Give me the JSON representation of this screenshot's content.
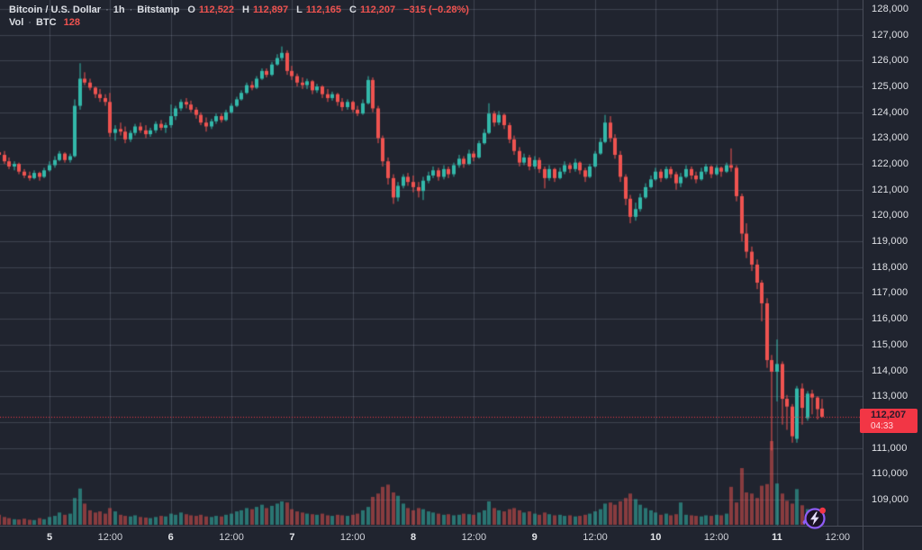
{
  "colors": {
    "background": "#20242f",
    "grid": "rgba(168,178,200,0.22)",
    "up": "#33b8aa",
    "down": "#ef5350",
    "volume_up": "rgba(51,184,170,0.55)",
    "volume_down": "rgba(239,83,80,0.50)",
    "last_price": "#f23645",
    "axis_text": "#dfe1e6",
    "purple": "#8e5df6"
  },
  "legend": {
    "symbol": "Bitcoin / U.S. Dollar",
    "separator": "·",
    "interval": "1h",
    "exchange": "Bitstamp",
    "open_label": "O",
    "open_value": "112,522",
    "high_label": "H",
    "high_value": "112,897",
    "low_label": "L",
    "low_value": "112,165",
    "close_label": "C",
    "close_value": "112,207",
    "change": "−315 (−0.28%)",
    "volume_label": "Vol",
    "volume_unit": "BTC",
    "volume_value": "128"
  },
  "price_axis": {
    "ticks": [
      128000,
      127000,
      126000,
      125000,
      124000,
      123000,
      122000,
      121000,
      120000,
      119000,
      118000,
      117000,
      116000,
      115000,
      114000,
      113000,
      112000,
      111000,
      110000,
      109000
    ],
    "hidden_tick": 112000,
    "last": {
      "price": "112,207",
      "countdown": "04:33",
      "value": 112207
    }
  },
  "time_axis": {
    "ticks": [
      {
        "label": "5",
        "i": 10,
        "major": true
      },
      {
        "label": "12:00",
        "i": 22,
        "major": false
      },
      {
        "label": "6",
        "i": 34,
        "major": true
      },
      {
        "label": "12:00",
        "i": 46,
        "major": false
      },
      {
        "label": "7",
        "i": 58,
        "major": true
      },
      {
        "label": "12:00",
        "i": 70,
        "major": false
      },
      {
        "label": "8",
        "i": 82,
        "major": true
      },
      {
        "label": "12:00",
        "i": 94,
        "major": false
      },
      {
        "label": "9",
        "i": 106,
        "major": true
      },
      {
        "label": "12:00",
        "i": 118,
        "major": false
      },
      {
        "label": "10",
        "i": 130,
        "major": true
      },
      {
        "label": "12:00",
        "i": 142,
        "major": false
      },
      {
        "label": "11",
        "i": 154,
        "major": true
      },
      {
        "label": "12:00",
        "i": 166,
        "major": false
      }
    ]
  },
  "chart_data": {
    "type": "candlestick",
    "title": "Bitcoin / U.S. Dollar · 1h · Bitstamp",
    "interval": "1h",
    "price_range_visible": [
      109000,
      128000
    ],
    "last_close": 112207,
    "last_volume_btc": 128,
    "ohlc": [
      [
        122450,
        122700,
        122250,
        122350
      ],
      [
        122350,
        122500,
        122000,
        122100
      ],
      [
        122100,
        122250,
        121800,
        121900
      ],
      [
        121900,
        122100,
        121750,
        122000
      ],
      [
        122000,
        122050,
        121600,
        121700
      ],
      [
        121700,
        121800,
        121450,
        121550
      ],
      [
        121550,
        121700,
        121350,
        121450
      ],
      [
        121450,
        121750,
        121400,
        121650
      ],
      [
        121650,
        121700,
        121350,
        121500
      ],
      [
        121500,
        121850,
        121450,
        121750
      ],
      [
        121750,
        122100,
        121700,
        121950
      ],
      [
        121950,
        122300,
        121850,
        122150
      ],
      [
        122150,
        122500,
        122100,
        122400
      ],
      [
        122400,
        122450,
        122050,
        122150
      ],
      [
        122150,
        122400,
        122050,
        122300
      ],
      [
        122300,
        124500,
        122250,
        124250
      ],
      [
        124250,
        125900,
        124100,
        125300
      ],
      [
        125300,
        125550,
        125050,
        125150
      ],
      [
        125150,
        125300,
        124850,
        124950
      ],
      [
        124950,
        125000,
        124550,
        124700
      ],
      [
        124700,
        124900,
        124400,
        124550
      ],
      [
        124550,
        124700,
        124250,
        124400
      ],
      [
        124400,
        124750,
        123050,
        123200
      ],
      [
        123200,
        123500,
        122900,
        123350
      ],
      [
        123350,
        123600,
        123100,
        123250
      ],
      [
        123250,
        123450,
        122800,
        122950
      ],
      [
        122950,
        123300,
        122850,
        123200
      ],
      [
        123200,
        123550,
        123100,
        123450
      ],
      [
        123450,
        123600,
        123200,
        123300
      ],
      [
        123300,
        123500,
        123000,
        123150
      ],
      [
        123150,
        123400,
        123050,
        123300
      ],
      [
        123300,
        123650,
        123200,
        123550
      ],
      [
        123550,
        123700,
        123300,
        123400
      ],
      [
        123400,
        123600,
        123200,
        123500
      ],
      [
        123500,
        124300,
        123400,
        123850
      ],
      [
        123850,
        124250,
        123700,
        124150
      ],
      [
        124150,
        124500,
        124050,
        124400
      ],
      [
        124400,
        124550,
        124150,
        124300
      ],
      [
        124300,
        124450,
        124000,
        124100
      ],
      [
        124100,
        124200,
        123750,
        123900
      ],
      [
        123900,
        124000,
        123500,
        123600
      ],
      [
        123600,
        123800,
        123250,
        123450
      ],
      [
        123450,
        123750,
        123350,
        123650
      ],
      [
        123650,
        123950,
        123550,
        123850
      ],
      [
        123850,
        123950,
        123600,
        123700
      ],
      [
        123700,
        124100,
        123650,
        124000
      ],
      [
        124000,
        124350,
        123950,
        124250
      ],
      [
        124250,
        124600,
        124200,
        124500
      ],
      [
        124500,
        124850,
        124450,
        124750
      ],
      [
        124750,
        125150,
        124700,
        125050
      ],
      [
        125050,
        125200,
        124850,
        124950
      ],
      [
        124950,
        125400,
        124900,
        125300
      ],
      [
        125300,
        125700,
        125250,
        125600
      ],
      [
        125600,
        125700,
        125350,
        125450
      ],
      [
        125450,
        125950,
        125400,
        125850
      ],
      [
        125850,
        126250,
        125800,
        126100
      ],
      [
        126100,
        126550,
        126000,
        126300
      ],
      [
        126300,
        126400,
        125450,
        125600
      ],
      [
        125600,
        125800,
        125250,
        125400
      ],
      [
        125400,
        125500,
        125000,
        125150
      ],
      [
        125150,
        125350,
        124900,
        125050
      ],
      [
        125050,
        125300,
        124900,
        125200
      ],
      [
        125200,
        125250,
        124700,
        124850
      ],
      [
        124850,
        125100,
        124750,
        125000
      ],
      [
        125000,
        125050,
        124550,
        124700
      ],
      [
        124700,
        124900,
        124400,
        124550
      ],
      [
        124550,
        124800,
        124450,
        124700
      ],
      [
        124700,
        124750,
        124250,
        124400
      ],
      [
        124400,
        124550,
        124050,
        124200
      ],
      [
        124200,
        124500,
        124100,
        124400
      ],
      [
        124400,
        124450,
        124000,
        124100
      ],
      [
        124100,
        124250,
        123850,
        123950
      ],
      [
        123950,
        124500,
        123900,
        124350
      ],
      [
        124350,
        125400,
        124300,
        125250
      ],
      [
        125250,
        125350,
        124000,
        124150
      ],
      [
        124150,
        124250,
        122800,
        123000
      ],
      [
        123000,
        123100,
        121900,
        122100
      ],
      [
        122100,
        122250,
        121200,
        121450
      ],
      [
        121450,
        121600,
        120450,
        120700
      ],
      [
        120700,
        121300,
        120550,
        121150
      ],
      [
        121150,
        121600,
        121050,
        121500
      ],
      [
        121500,
        121650,
        121150,
        121300
      ],
      [
        121300,
        121550,
        120900,
        121100
      ],
      [
        121100,
        121300,
        120700,
        120950
      ],
      [
        120950,
        121500,
        120600,
        121350
      ],
      [
        121350,
        121700,
        121250,
        121550
      ],
      [
        121550,
        121900,
        121450,
        121750
      ],
      [
        121750,
        121850,
        121350,
        121500
      ],
      [
        121500,
        121950,
        121400,
        121800
      ],
      [
        121800,
        121900,
        121450,
        121600
      ],
      [
        121600,
        122050,
        121500,
        121950
      ],
      [
        121950,
        122350,
        121850,
        122200
      ],
      [
        122200,
        122300,
        121850,
        122000
      ],
      [
        122000,
        122550,
        121950,
        122400
      ],
      [
        122400,
        122500,
        122100,
        122250
      ],
      [
        122250,
        122900,
        122200,
        122800
      ],
      [
        122800,
        123350,
        122750,
        123200
      ],
      [
        123200,
        124350,
        123150,
        123950
      ],
      [
        123950,
        124050,
        123450,
        123600
      ],
      [
        123600,
        124050,
        123500,
        123900
      ],
      [
        123900,
        123950,
        123350,
        123500
      ],
      [
        123500,
        123600,
        122800,
        122950
      ],
      [
        122950,
        123100,
        122350,
        122500
      ],
      [
        122500,
        122650,
        121900,
        122050
      ],
      [
        122050,
        122400,
        121950,
        122250
      ],
      [
        122250,
        122350,
        121750,
        121900
      ],
      [
        121900,
        122300,
        121800,
        122150
      ],
      [
        122150,
        122250,
        121650,
        121800
      ],
      [
        121800,
        121900,
        121050,
        121450
      ],
      [
        121450,
        121950,
        121350,
        121800
      ],
      [
        121800,
        121850,
        121300,
        121450
      ],
      [
        121450,
        121850,
        121400,
        121700
      ],
      [
        121700,
        122100,
        121600,
        121950
      ],
      [
        121950,
        122050,
        121650,
        121800
      ],
      [
        121800,
        122200,
        121700,
        122050
      ],
      [
        122050,
        122100,
        121600,
        121750
      ],
      [
        121750,
        121850,
        121300,
        121500
      ],
      [
        121500,
        122000,
        121450,
        121900
      ],
      [
        121900,
        122500,
        121850,
        122400
      ],
      [
        122400,
        123000,
        122350,
        122850
      ],
      [
        122850,
        123900,
        122800,
        123600
      ],
      [
        123600,
        123850,
        122850,
        123000
      ],
      [
        123000,
        123150,
        122200,
        122350
      ],
      [
        122350,
        122500,
        121300,
        121500
      ],
      [
        121500,
        121600,
        120400,
        120650
      ],
      [
        120650,
        120800,
        119700,
        119950
      ],
      [
        119950,
        120500,
        119800,
        120250
      ],
      [
        120250,
        120850,
        120150,
        120700
      ],
      [
        120700,
        121250,
        120650,
        121100
      ],
      [
        121100,
        121550,
        121050,
        121400
      ],
      [
        121400,
        121850,
        121350,
        121700
      ],
      [
        121700,
        121800,
        121300,
        121450
      ],
      [
        121450,
        121900,
        121400,
        121800
      ],
      [
        121800,
        121900,
        121450,
        121600
      ],
      [
        121600,
        121700,
        121000,
        121250
      ],
      [
        121250,
        121650,
        121100,
        121500
      ],
      [
        121500,
        121950,
        121450,
        121800
      ],
      [
        121800,
        121900,
        121400,
        121550
      ],
      [
        121550,
        121700,
        121250,
        121400
      ],
      [
        121400,
        121850,
        121350,
        121700
      ],
      [
        121700,
        122000,
        121600,
        121900
      ],
      [
        121900,
        121950,
        121450,
        121600
      ],
      [
        121600,
        121950,
        121550,
        121850
      ],
      [
        121850,
        121900,
        121500,
        121700
      ],
      [
        121700,
        122050,
        121650,
        121950
      ],
      [
        121950,
        122600,
        121700,
        121850
      ],
      [
        121850,
        121950,
        120550,
        120750
      ],
      [
        120750,
        120850,
        119000,
        119300
      ],
      [
        119300,
        119700,
        118350,
        118600
      ],
      [
        118600,
        118800,
        117850,
        118100
      ],
      [
        118100,
        118300,
        117150,
        117400
      ],
      [
        117400,
        117500,
        115900,
        116600
      ],
      [
        116600,
        116800,
        114100,
        114400
      ],
      [
        114400,
        114600,
        110900,
        113950
      ],
      [
        113950,
        115200,
        112800,
        114250
      ],
      [
        114250,
        114350,
        111900,
        112900
      ],
      [
        112900,
        113050,
        111700,
        112600
      ],
      [
        112600,
        112700,
        111200,
        111450
      ],
      [
        111350,
        113400,
        111200,
        113300
      ],
      [
        113300,
        113500,
        111900,
        112550
      ],
      [
        112150,
        113200,
        112050,
        113100
      ],
      [
        113100,
        113250,
        112300,
        112950
      ],
      [
        112950,
        113000,
        112100,
        112500
      ],
      [
        112522,
        112897,
        112165,
        112207
      ]
    ],
    "volume": [
      180,
      140,
      120,
      100,
      95,
      110,
      90,
      85,
      120,
      100,
      140,
      160,
      220,
      180,
      200,
      480,
      650,
      380,
      260,
      220,
      240,
      200,
      300,
      240,
      180,
      160,
      150,
      170,
      140,
      130,
      120,
      140,
      160,
      150,
      200,
      180,
      220,
      190,
      170,
      160,
      180,
      150,
      140,
      160,
      150,
      180,
      200,
      240,
      260,
      300,
      280,
      320,
      360,
      300,
      340,
      380,
      420,
      400,
      280,
      240,
      220,
      200,
      190,
      180,
      200,
      170,
      160,
      180,
      170,
      160,
      180,
      200,
      260,
      320,
      500,
      560,
      680,
      720,
      580,
      520,
      380,
      300,
      260,
      300,
      280,
      240,
      220,
      200,
      180,
      190,
      170,
      180,
      200,
      190,
      180,
      220,
      260,
      420,
      300,
      260,
      240,
      280,
      300,
      260,
      220,
      240,
      200,
      180,
      220,
      190,
      170,
      180,
      160,
      170,
      150,
      160,
      180,
      200,
      240,
      280,
      380,
      400,
      360,
      420,
      480,
      560,
      460,
      360,
      300,
      260,
      220,
      180,
      200,
      170,
      190,
      400,
      180,
      170,
      160,
      150,
      170,
      160,
      180,
      170,
      200,
      680,
      400,
      1016,
      580,
      560,
      480,
      700,
      730,
      1500,
      740,
      560,
      430,
      380,
      640,
      350,
      280,
      230,
      180,
      128
    ]
  },
  "badge": {
    "name": "flash-alert",
    "tooltip": ""
  }
}
